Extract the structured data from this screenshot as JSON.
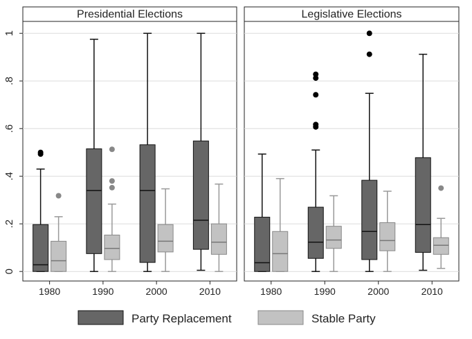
{
  "chart_data": {
    "type": "box",
    "panels": [
      {
        "title": "Presidential Elections",
        "categories": [
          "1980",
          "1990",
          "2000",
          "2010"
        ],
        "series": [
          {
            "name": "Party Replacement",
            "boxes": [
              {
                "min": 0.0,
                "q1": 0.0,
                "median": 0.028,
                "q3": 0.197,
                "max": 0.43,
                "outliers": [
                  0.493,
                  0.5
                ]
              },
              {
                "min": 0.0,
                "q1": 0.075,
                "median": 0.34,
                "q3": 0.515,
                "max": 0.975,
                "outliers": []
              },
              {
                "min": 0.0,
                "q1": 0.038,
                "median": 0.34,
                "q3": 0.532,
                "max": 1.0,
                "outliers": []
              },
              {
                "min": 0.005,
                "q1": 0.093,
                "median": 0.215,
                "q3": 0.548,
                "max": 1.0,
                "outliers": []
              }
            ]
          },
          {
            "name": "Stable Party",
            "boxes": [
              {
                "min": 0.0,
                "q1": 0.0,
                "median": 0.045,
                "q3": 0.127,
                "max": 0.23,
                "outliers": [
                  0.318
                ]
              },
              {
                "min": 0.0,
                "q1": 0.05,
                "median": 0.097,
                "q3": 0.153,
                "max": 0.283,
                "outliers": [
                  0.352,
                  0.38,
                  0.513
                ]
              },
              {
                "min": 0.0,
                "q1": 0.082,
                "median": 0.127,
                "q3": 0.197,
                "max": 0.347,
                "outliers": []
              },
              {
                "min": 0.0,
                "q1": 0.072,
                "median": 0.123,
                "q3": 0.2,
                "max": 0.367,
                "outliers": []
              }
            ]
          }
        ]
      },
      {
        "title": "Legislative Elections",
        "categories": [
          "1980",
          "1990",
          "2000",
          "2010"
        ],
        "series": [
          {
            "name": "Party Replacement",
            "boxes": [
              {
                "min": 0.0,
                "q1": 0.0,
                "median": 0.037,
                "q3": 0.228,
                "max": 0.493,
                "outliers": []
              },
              {
                "min": 0.0,
                "q1": 0.055,
                "median": 0.123,
                "q3": 0.27,
                "max": 0.51,
                "outliers": [
                  0.607,
                  0.617,
                  0.742,
                  0.812,
                  0.828
                ]
              },
              {
                "min": 0.0,
                "q1": 0.05,
                "median": 0.168,
                "q3": 0.383,
                "max": 0.748,
                "outliers": [
                  0.912,
                  1.0
                ]
              },
              {
                "min": 0.005,
                "q1": 0.08,
                "median": 0.197,
                "q3": 0.478,
                "max": 0.912,
                "outliers": []
              }
            ]
          },
          {
            "name": "Stable Party",
            "boxes": [
              {
                "min": 0.0,
                "q1": 0.0,
                "median": 0.075,
                "q3": 0.168,
                "max": 0.39,
                "outliers": []
              },
              {
                "min": 0.0,
                "q1": 0.097,
                "median": 0.132,
                "q3": 0.19,
                "max": 0.318,
                "outliers": []
              },
              {
                "min": 0.0,
                "q1": 0.087,
                "median": 0.13,
                "q3": 0.205,
                "max": 0.337,
                "outliers": []
              },
              {
                "min": 0.013,
                "q1": 0.072,
                "median": 0.11,
                "q3": 0.142,
                "max": 0.223,
                "outliers": [
                  0.35
                ]
              }
            ]
          }
        ]
      }
    ],
    "yticks": [
      0,
      0.2,
      0.4,
      0.6,
      0.8,
      1
    ],
    "ytick_labels": [
      "0",
      ".2",
      ".4",
      ".6",
      ".8",
      "1"
    ],
    "ylim": [
      -0.04,
      1.05
    ],
    "grid": true,
    "legend": {
      "position": "bottom",
      "entries": [
        "Party Replacement",
        "Stable Party"
      ]
    },
    "colors": {
      "Party Replacement": "#666666",
      "Stable Party": "#c2c2c2",
      "outlier_Party Replacement": "#000000",
      "outlier_Stable Party": "#888888",
      "grid": "#dcdcdc",
      "strip": "#ffffff"
    }
  }
}
